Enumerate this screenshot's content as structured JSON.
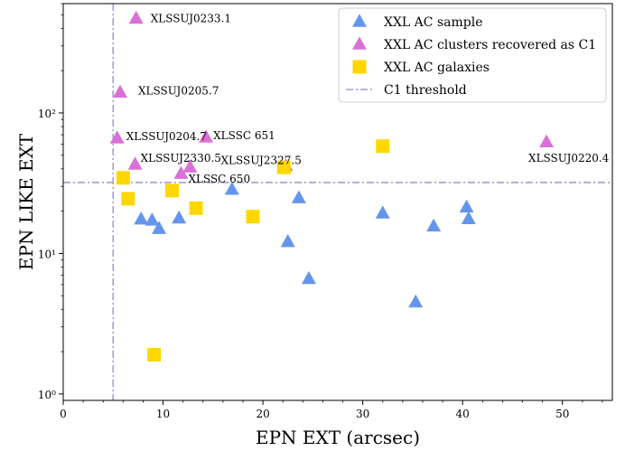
{
  "chart_data": {
    "type": "scatter",
    "xlabel": "EPN EXT (arcsec)",
    "ylabel": "EPN LIKE EXT",
    "xlim": [
      0,
      55
    ],
    "ylim": [
      0.9,
      600
    ],
    "yscale": "log",
    "x_ticks": [
      0,
      10,
      20,
      30,
      40,
      50
    ],
    "x_tick_labels": [
      "0",
      "10",
      "20",
      "30",
      "40",
      "50"
    ],
    "y_ticks": [
      1,
      10,
      100
    ],
    "y_tick_labels": [
      "10⁰",
      "10¹",
      "10²"
    ],
    "grid": false,
    "legend_position": "top-right",
    "series": [
      {
        "name": "XXL AC sample",
        "marker": "triangle",
        "color": "#6495ED",
        "points": [
          {
            "x": 7.8,
            "y": 17.5
          },
          {
            "x": 8.9,
            "y": 17.2
          },
          {
            "x": 9.6,
            "y": 15.0
          },
          {
            "x": 11.6,
            "y": 17.8
          },
          {
            "x": 16.9,
            "y": 28.5
          },
          {
            "x": 22.5,
            "y": 12.1
          },
          {
            "x": 23.6,
            "y": 24.8
          },
          {
            "x": 24.6,
            "y": 6.6
          },
          {
            "x": 32.0,
            "y": 19.3
          },
          {
            "x": 35.3,
            "y": 4.5
          },
          {
            "x": 37.1,
            "y": 15.6
          },
          {
            "x": 40.4,
            "y": 21.3
          },
          {
            "x": 40.6,
            "y": 17.6
          }
        ]
      },
      {
        "name": "XXL AC clusters recovered as C1",
        "marker": "triangle",
        "color": "#DA70D6",
        "points": [
          {
            "x": 7.3,
            "y": 470,
            "label": "XLSSUJ0233.1"
          },
          {
            "x": 5.7,
            "y": 140,
            "label": "XLSSUJ0205.7"
          },
          {
            "x": 5.4,
            "y": 66,
            "label": "XLSSUJ0204.7"
          },
          {
            "x": 14.3,
            "y": 67,
            "label": "XLSSC 651"
          },
          {
            "x": 7.2,
            "y": 43,
            "label": "XLSSUJ2330.5"
          },
          {
            "x": 12.7,
            "y": 41
          },
          {
            "x": 11.8,
            "y": 37,
            "label": "XLSSC 650"
          },
          {
            "x": 22.3,
            "y": 42,
            "label": "XLSSUJ2327.5"
          },
          {
            "x": 48.4,
            "y": 62,
            "label": "XLSSUJ0220.4"
          }
        ]
      },
      {
        "name": "XXL AC galaxies",
        "marker": "square",
        "color": "#FFD700",
        "points": [
          {
            "x": 6.0,
            "y": 34.5
          },
          {
            "x": 6.5,
            "y": 24.5
          },
          {
            "x": 10.9,
            "y": 28.0
          },
          {
            "x": 13.3,
            "y": 21.0
          },
          {
            "x": 19.0,
            "y": 18.3
          },
          {
            "x": 22.1,
            "y": 41.0
          },
          {
            "x": 32.0,
            "y": 58.0
          },
          {
            "x": 9.1,
            "y": 1.9
          }
        ]
      }
    ],
    "threshold_line": {
      "name": "C1 threshold",
      "color": "#9F9FD0",
      "style": "dash-dot",
      "x": 5,
      "y": 32
    }
  }
}
